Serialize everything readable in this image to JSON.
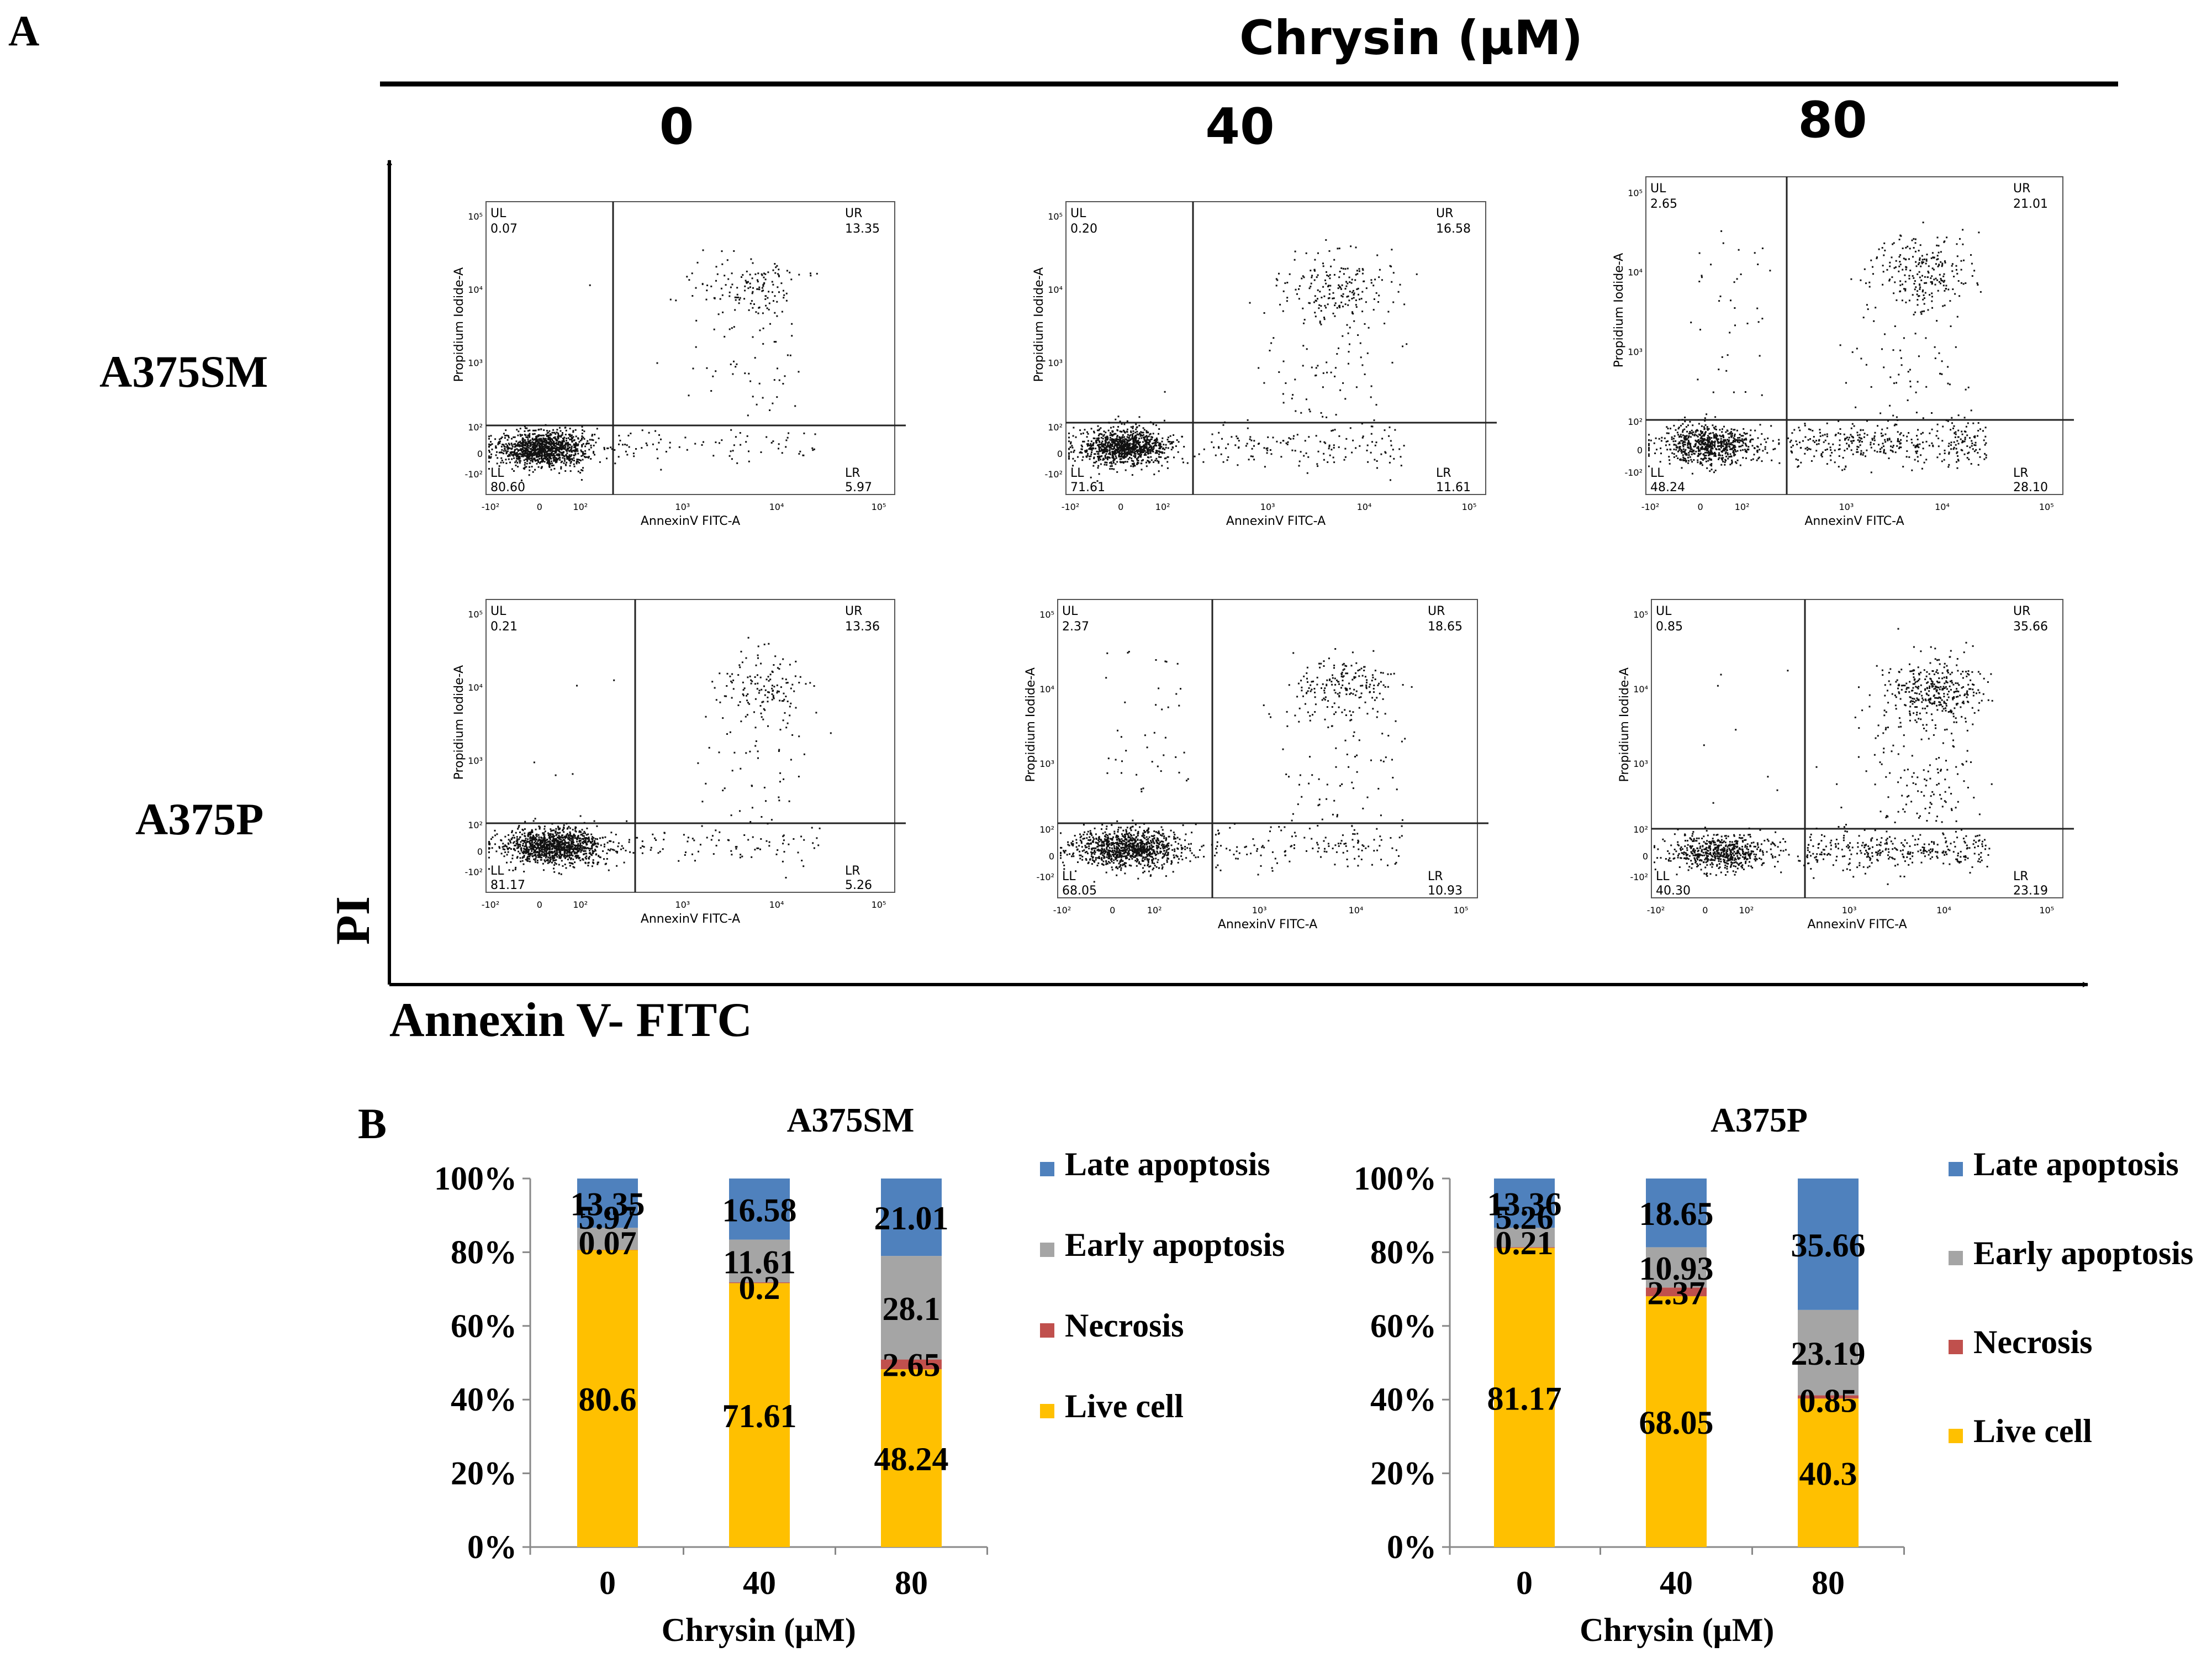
{
  "panel_a": {
    "label": "A",
    "title": "Chrysin (μM)",
    "y_axis_label": "PI",
    "x_axis_label": "Annexin V- FITC",
    "concentrations": [
      "0",
      "40",
      "80"
    ],
    "cell_lines": [
      "A375SM",
      "A375P"
    ],
    "plot_x_label": "AnnexinV FITC-A",
    "plot_y_label": "Propidium Iodide-A",
    "x_ticks": [
      "-10²",
      "0",
      "10²",
      "10³",
      "10⁴",
      "10⁵"
    ],
    "y_ticks": [
      "10⁵",
      "10⁴",
      "10³",
      "10²",
      "0",
      "-10²"
    ],
    "quadrant_names": [
      "UL",
      "UR",
      "LL",
      "LR"
    ]
  },
  "chart_data": [
    {
      "type": "flow-cytometry-scatter",
      "row": "A375SM",
      "plots": [
        {
          "conc": "0",
          "UL": "0.07",
          "UR": "13.35",
          "LL": "80.60",
          "LR": "5.97"
        },
        {
          "conc": "40",
          "UL": "0.20",
          "UR": "16.58",
          "LL": "71.61",
          "LR": "11.61"
        },
        {
          "conc": "80",
          "UL": "2.65",
          "UR": "21.01",
          "LL": "48.24",
          "LR": "28.10"
        }
      ]
    },
    {
      "type": "flow-cytometry-scatter",
      "row": "A375P",
      "plots": [
        {
          "conc": "0",
          "UL": "0.21",
          "UR": "13.36",
          "LL": "81.17",
          "LR": "5.26"
        },
        {
          "conc": "40",
          "UL": "2.37",
          "UR": "18.65",
          "LL": "68.05",
          "LR": "10.93"
        },
        {
          "conc": "80",
          "UL": "0.85",
          "UR": "35.66",
          "LL": "40.30",
          "LR": "23.19"
        }
      ]
    },
    {
      "type": "bar",
      "stacked": true,
      "title": "A375SM",
      "categories": [
        "0",
        "40",
        "80"
      ],
      "xlabel": "Chrysin (μM)",
      "ylabel": "",
      "ylim": [
        0,
        100
      ],
      "y_ticks": [
        "0%",
        "20%",
        "40%",
        "60%",
        "80%",
        "100%"
      ],
      "series": [
        {
          "name": "Live cell",
          "values": [
            80.6,
            71.61,
            48.24
          ]
        },
        {
          "name": "Necrosis",
          "values": [
            0.07,
            0.2,
            2.65
          ]
        },
        {
          "name": "Early apoptosis",
          "values": [
            5.97,
            11.61,
            28.1
          ]
        },
        {
          "name": "Late apoptosis",
          "values": [
            13.35,
            16.58,
            21.01
          ]
        }
      ],
      "labels": [
        [
          "80.6",
          "0.07",
          "5.97",
          "13.35"
        ],
        [
          "71.61",
          "0.2",
          "11.61",
          "16.58"
        ],
        [
          "48.24",
          "2.65",
          "28.1",
          "21.01"
        ]
      ]
    },
    {
      "type": "bar",
      "stacked": true,
      "title": "A375P",
      "categories": [
        "0",
        "40",
        "80"
      ],
      "xlabel": "Chrysin (μM)",
      "ylabel": "",
      "ylim": [
        0,
        100
      ],
      "y_ticks": [
        "0%",
        "20%",
        "40%",
        "60%",
        "80%",
        "100%"
      ],
      "series": [
        {
          "name": "Live cell",
          "values": [
            81.17,
            68.05,
            40.3
          ]
        },
        {
          "name": "Necrosis",
          "values": [
            0.21,
            2.37,
            0.85
          ]
        },
        {
          "name": "Early apoptosis",
          "values": [
            5.26,
            10.93,
            23.19
          ]
        },
        {
          "name": "Late apoptosis",
          "values": [
            13.36,
            18.65,
            35.66
          ]
        }
      ],
      "labels": [
        [
          "81.17",
          "0.21",
          "5.26",
          "13.36"
        ],
        [
          "68.05",
          "2.37",
          "10.93",
          "18.65"
        ],
        [
          "40.3",
          "0.85",
          "23.19",
          "35.66"
        ]
      ]
    }
  ],
  "panel_b": {
    "label": "B",
    "legend": [
      "Late apoptosis",
      "Early apoptosis",
      "Necrosis",
      "Live cell"
    ]
  },
  "colors": {
    "Live cell": "#FFC000",
    "Necrosis": "#C0504D",
    "Early apoptosis": "#A5A5A5",
    "Late apoptosis": "#4F81BD",
    "ink": "#000000",
    "frame": "#333333"
  }
}
